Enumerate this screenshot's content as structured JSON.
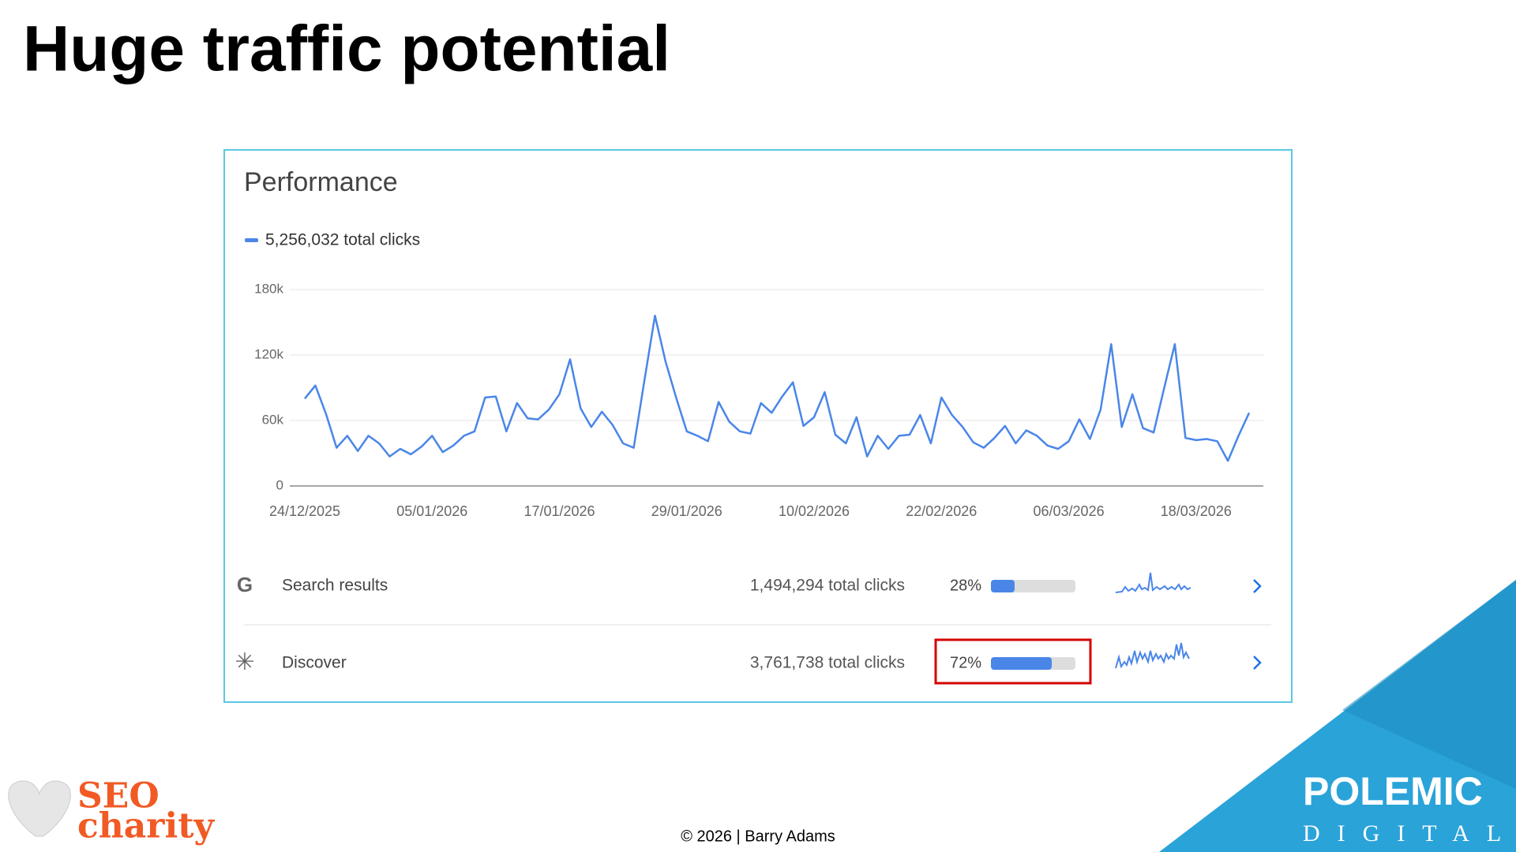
{
  "title": "Huge traffic potential",
  "chart_data": {
    "type": "line",
    "title": "Performance",
    "x": [
      "24/12/2025",
      "25/12/2025",
      "26/12/2025",
      "27/12/2025",
      "28/12/2025",
      "29/12/2025",
      "30/12/2025",
      "31/12/2025",
      "01/01/2026",
      "02/01/2026",
      "03/01/2026",
      "04/01/2026",
      "05/01/2026",
      "06/01/2026",
      "07/01/2026",
      "08/01/2026",
      "09/01/2026",
      "10/01/2026",
      "11/01/2026",
      "12/01/2026",
      "13/01/2026",
      "14/01/2026",
      "15/01/2026",
      "16/01/2026",
      "17/01/2026",
      "18/01/2026",
      "19/01/2026",
      "20/01/2026",
      "21/01/2026",
      "22/01/2026",
      "23/01/2026",
      "24/01/2026",
      "25/01/2026",
      "26/01/2026",
      "27/01/2026",
      "28/01/2026",
      "29/01/2026",
      "30/01/2026",
      "31/01/2026",
      "01/02/2026",
      "02/02/2026",
      "03/02/2026",
      "04/02/2026",
      "05/02/2026",
      "06/02/2026",
      "07/02/2026",
      "08/02/2026",
      "09/02/2026",
      "10/02/2026",
      "11/02/2026",
      "12/02/2026",
      "13/02/2026",
      "14/02/2026",
      "15/02/2026",
      "16/02/2026",
      "17/02/2026",
      "18/02/2026",
      "19/02/2026",
      "20/02/2026",
      "21/02/2026",
      "22/02/2026",
      "23/02/2026",
      "24/02/2026",
      "25/02/2026",
      "26/02/2026",
      "27/02/2026",
      "28/02/2026",
      "01/03/2026",
      "02/03/2026",
      "03/03/2026",
      "04/03/2026",
      "05/03/2026",
      "06/03/2026",
      "07/03/2026",
      "08/03/2026",
      "09/03/2026",
      "10/03/2026",
      "11/03/2026",
      "12/03/2026",
      "13/03/2026",
      "14/03/2026",
      "15/03/2026",
      "16/03/2026",
      "17/03/2026",
      "18/03/2026",
      "19/03/2026",
      "20/03/2026",
      "21/03/2026",
      "22/03/2026",
      "23/03/2026"
    ],
    "xticks": [
      "24/12/2025",
      "05/01/2026",
      "17/01/2026",
      "29/01/2026",
      "10/02/2026",
      "22/02/2026",
      "06/03/2026",
      "18/03/2026"
    ],
    "series": [
      {
        "name": "5,256,032 total clicks",
        "color": "#4a86e8",
        "values": [
          80000,
          92000,
          66000,
          35000,
          46000,
          32000,
          46000,
          39000,
          27000,
          34000,
          29000,
          36000,
          46000,
          31000,
          37000,
          46000,
          50000,
          81000,
          82000,
          50000,
          76000,
          62000,
          61000,
          70000,
          84000,
          116000,
          71000,
          54000,
          68000,
          56000,
          39000,
          35000,
          96000,
          156000,
          114000,
          81000,
          50000,
          46000,
          41000,
          77000,
          59000,
          50000,
          48000,
          76000,
          67000,
          82000,
          95000,
          55000,
          63000,
          86000,
          47000,
          39000,
          63000,
          27000,
          46000,
          34000,
          46000,
          47000,
          65000,
          39000,
          81000,
          65000,
          54000,
          40000,
          35000,
          44000,
          55000,
          39000,
          51000,
          46000,
          37000,
          34000,
          41000,
          61000,
          43000,
          70000,
          130000,
          54000,
          84000,
          53000,
          49000,
          90000,
          130000,
          44000,
          42000,
          43000,
          41000,
          23000,
          46000,
          67000
        ]
      }
    ],
    "ylim": [
      0,
      180000
    ],
    "yticks": [
      0,
      {
        "value": 60000,
        "label": "60k"
      },
      {
        "value": 120000,
        "label": "120k"
      },
      {
        "value": 180000,
        "label": "180k"
      }
    ],
    "grid": true
  },
  "breakdown": {
    "rows": [
      {
        "name": "Search results",
        "total": "1,494,294 total clicks",
        "share": 28,
        "value_label": "28%"
      },
      {
        "name": "Discover",
        "total": "3,761,738 total clicks",
        "share": 72,
        "value_label": "72%"
      }
    ]
  },
  "footer": "© 2026 | Barry Adams",
  "logo_left": [
    "SEO",
    "charity"
  ],
  "logo_right": [
    "POLEMIC",
    "DIGITAL"
  ]
}
